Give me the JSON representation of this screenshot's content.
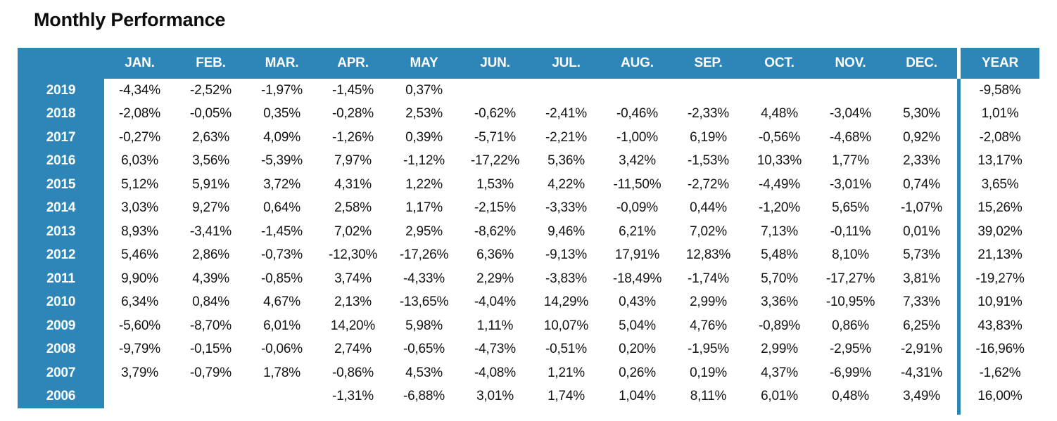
{
  "chart_data": {
    "type": "table",
    "title": "Monthly Performance",
    "accent_color": "#2E86B8",
    "header_text_color": "#FFFFFF",
    "body_text_color": "#141414",
    "number_format": "percent, comma decimal separator",
    "legend_position": "none",
    "columns": [
      "JAN.",
      "FEB.",
      "MAR.",
      "APR.",
      "MAY",
      "JUN.",
      "JUL.",
      "AUG.",
      "SEP.",
      "OCT.",
      "NOV.",
      "DEC.",
      "YEAR"
    ],
    "rows": [
      {
        "year": "2019",
        "months": [
          "-4,34%",
          "-2,52%",
          "-1,97%",
          "-1,45%",
          "0,37%",
          "",
          "",
          "",
          "",
          "",
          "",
          ""
        ],
        "year_total": "-9,58%"
      },
      {
        "year": "2018",
        "months": [
          "-2,08%",
          "-0,05%",
          "0,35%",
          "-0,28%",
          "2,53%",
          "-0,62%",
          "-2,41%",
          "-0,46%",
          "-2,33%",
          "4,48%",
          "-3,04%",
          "5,30%"
        ],
        "year_total": "1,01%"
      },
      {
        "year": "2017",
        "months": [
          "-0,27%",
          "2,63%",
          "4,09%",
          "-1,26%",
          "0,39%",
          "-5,71%",
          "-2,21%",
          "-1,00%",
          "6,19%",
          "-0,56%",
          "-4,68%",
          "0,92%"
        ],
        "year_total": "-2,08%"
      },
      {
        "year": "2016",
        "months": [
          "6,03%",
          "3,56%",
          "-5,39%",
          "7,97%",
          "-1,12%",
          "-17,22%",
          "5,36%",
          "3,42%",
          "-1,53%",
          "10,33%",
          "1,77%",
          "2,33%"
        ],
        "year_total": "13,17%"
      },
      {
        "year": "2015",
        "months": [
          "5,12%",
          "5,91%",
          "3,72%",
          "4,31%",
          "1,22%",
          "1,53%",
          "4,22%",
          "-11,50%",
          "-2,72%",
          "-4,49%",
          "-3,01%",
          "0,74%"
        ],
        "year_total": "3,65%"
      },
      {
        "year": "2014",
        "months": [
          "3,03%",
          "9,27%",
          "0,64%",
          "2,58%",
          "1,17%",
          "-2,15%",
          "-3,33%",
          "-0,09%",
          "0,44%",
          "-1,20%",
          "5,65%",
          "-1,07%"
        ],
        "year_total": "15,26%"
      },
      {
        "year": "2013",
        "months": [
          "8,93%",
          "-3,41%",
          "-1,45%",
          "7,02%",
          "2,95%",
          "-8,62%",
          "9,46%",
          "6,21%",
          "7,02%",
          "7,13%",
          "-0,11%",
          "0,01%"
        ],
        "year_total": "39,02%"
      },
      {
        "year": "2012",
        "months": [
          "5,46%",
          "2,86%",
          "-0,73%",
          "-12,30%",
          "-17,26%",
          "6,36%",
          "-9,13%",
          "17,91%",
          "12,83%",
          "5,48%",
          "8,10%",
          "5,73%"
        ],
        "year_total": "21,13%"
      },
      {
        "year": "2011",
        "months": [
          "9,90%",
          "4,39%",
          "-0,85%",
          "3,74%",
          "-4,33%",
          "2,29%",
          "-3,83%",
          "-18,49%",
          "-1,74%",
          "5,70%",
          "-17,27%",
          "3,81%"
        ],
        "year_total": "-19,27%"
      },
      {
        "year": "2010",
        "months": [
          "6,34%",
          "0,84%",
          "4,67%",
          "2,13%",
          "-13,65%",
          "-4,04%",
          "14,29%",
          "0,43%",
          "2,99%",
          "3,36%",
          "-10,95%",
          "7,33%"
        ],
        "year_total": "10,91%"
      },
      {
        "year": "2009",
        "months": [
          "-5,60%",
          "-8,70%",
          "6,01%",
          "14,20%",
          "5,98%",
          "1,11%",
          "10,07%",
          "5,04%",
          "4,76%",
          "-0,89%",
          "0,86%",
          "6,25%"
        ],
        "year_total": "43,83%"
      },
      {
        "year": "2008",
        "months": [
          "-9,79%",
          "-0,15%",
          "-0,06%",
          "2,74%",
          "-0,65%",
          "-4,73%",
          "-0,51%",
          "0,20%",
          "-1,95%",
          "2,99%",
          "-2,95%",
          "-2,91%"
        ],
        "year_total": "-16,96%"
      },
      {
        "year": "2007",
        "months": [
          "3,79%",
          "-0,79%",
          "1,78%",
          "-0,86%",
          "4,53%",
          "-4,08%",
          "1,21%",
          "0,26%",
          "0,19%",
          "4,37%",
          "-6,99%",
          "-4,31%"
        ],
        "year_total": "-1,62%"
      },
      {
        "year": "2006",
        "months": [
          "",
          "",
          "",
          "-1,31%",
          "-6,88%",
          "3,01%",
          "1,74%",
          "1,04%",
          "8,11%",
          "6,01%",
          "0,48%",
          "3,49%"
        ],
        "year_total": "16,00%"
      }
    ]
  }
}
